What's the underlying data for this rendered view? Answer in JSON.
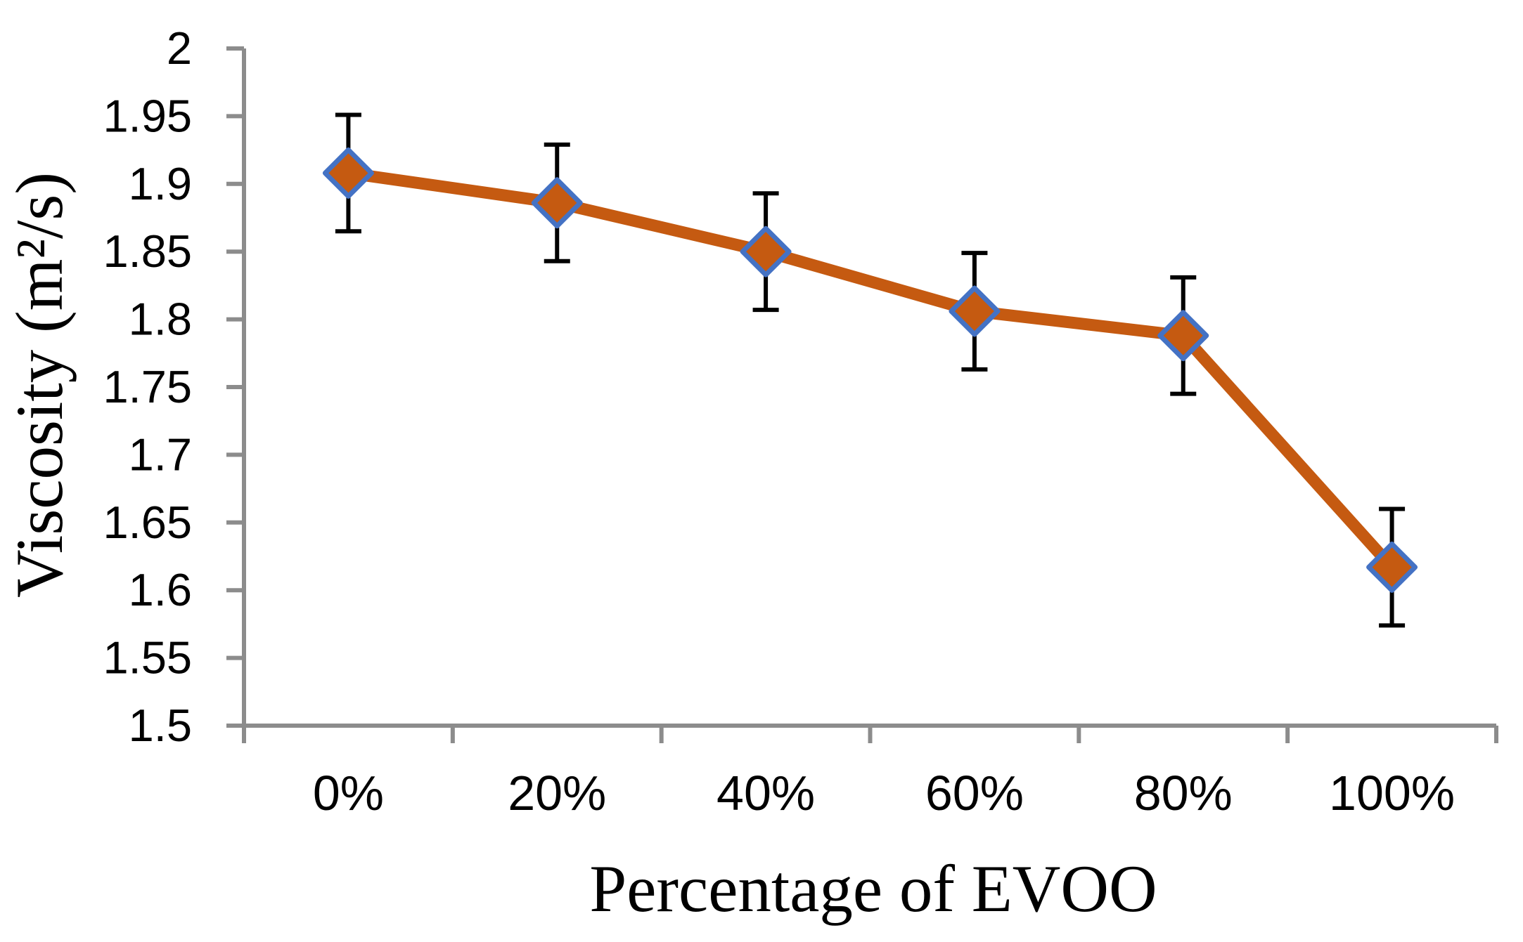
{
  "chart_data": {
    "type": "line",
    "title": "",
    "xlabel": "Percentage of EVOO",
    "ylabel": "Viscosity (m²/s)",
    "categories": [
      "0%",
      "20%",
      "40%",
      "60%",
      "80%",
      "100%"
    ],
    "series": [
      {
        "name": "Viscosity",
        "values": [
          1.908,
          1.886,
          1.85,
          1.806,
          1.788,
          1.617
        ],
        "error_bars": [
          0.043,
          0.043,
          0.043,
          0.043,
          0.043,
          0.043
        ]
      }
    ],
    "ylim": [
      1.5,
      2.0
    ],
    "ytick_step": 0.05,
    "ytick_labels": [
      "2",
      "1.95",
      "1.9",
      "1.85",
      "1.8",
      "1.75",
      "1.7",
      "1.65",
      "1.6",
      "1.55",
      "1.5"
    ],
    "grid": false,
    "legend_position": "none",
    "marker_shape": "diamond",
    "colors": {
      "line": "#C55A11",
      "marker_fill": "#C55A11",
      "marker_border": "#4472C4",
      "error_bar": "#000000",
      "axis": "#8C8C8C",
      "tick_text": "#000000",
      "title_text": "#000000",
      "background": "#FFFFFF"
    }
  }
}
